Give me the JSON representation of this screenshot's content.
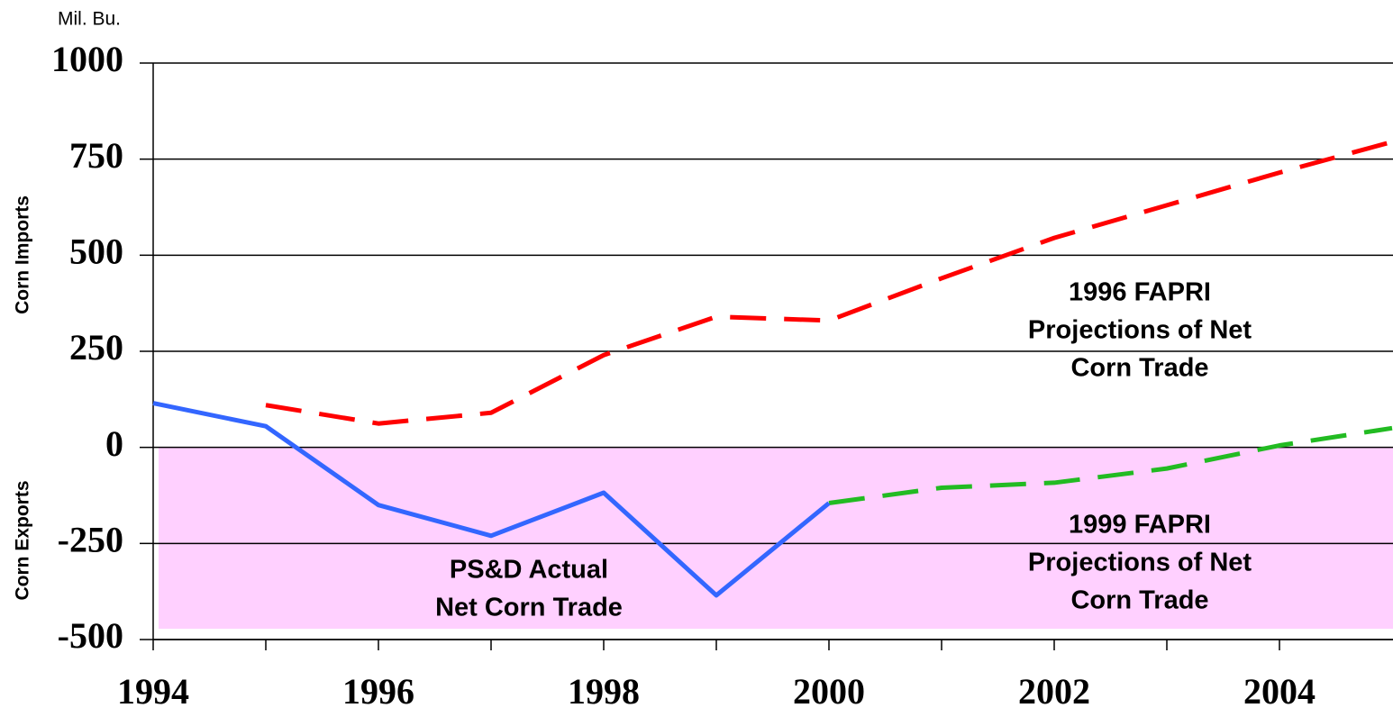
{
  "chart_data": {
    "type": "line",
    "unit_label": "Mil. Bu.",
    "y_label_upper": "Corn Imports",
    "y_label_lower": "Corn Exports",
    "x": [
      1994,
      1995,
      1996,
      1997,
      1998,
      1999,
      2000,
      2001,
      2002,
      2003,
      2004,
      2005
    ],
    "series": [
      {
        "color": "#ff0000",
        "dashed": true,
        "values": [
          null,
          110,
          62,
          90,
          240,
          340,
          330,
          440,
          545,
          630,
          715,
          795
        ]
      },
      {
        "color": "#22bb22",
        "dashed": true,
        "values": [
          null,
          null,
          null,
          null,
          null,
          null,
          -145,
          -105,
          -92,
          -55,
          5,
          50
        ]
      },
      {
        "color": "#3366ff",
        "dashed": false,
        "values": [
          115,
          55,
          -150,
          -230,
          -118,
          -385,
          -145,
          null,
          null,
          null,
          null,
          null
        ]
      }
    ],
    "annotations": [
      {
        "lines": [
          "1996 FAPRI",
          "Projections of Net",
          "Corn Trade"
        ]
      },
      {
        "lines": [
          "1999 FAPRI",
          "Projections of Net",
          "Corn Trade"
        ]
      },
      {
        "lines": [
          "PS&D Actual",
          "Net Corn Trade"
        ]
      }
    ],
    "xlim": [
      1994,
      2005
    ],
    "ylim": [
      -500,
      1000
    ],
    "xticks": [
      1994,
      1996,
      1998,
      2000,
      2002,
      2004
    ],
    "xminor_ticks": [
      1995,
      1997,
      1999,
      2001,
      2003
    ],
    "yticks": [
      -500,
      -250,
      0,
      250,
      500,
      750,
      1000
    ],
    "grid": true,
    "export_shade": "#ffd0ff"
  }
}
